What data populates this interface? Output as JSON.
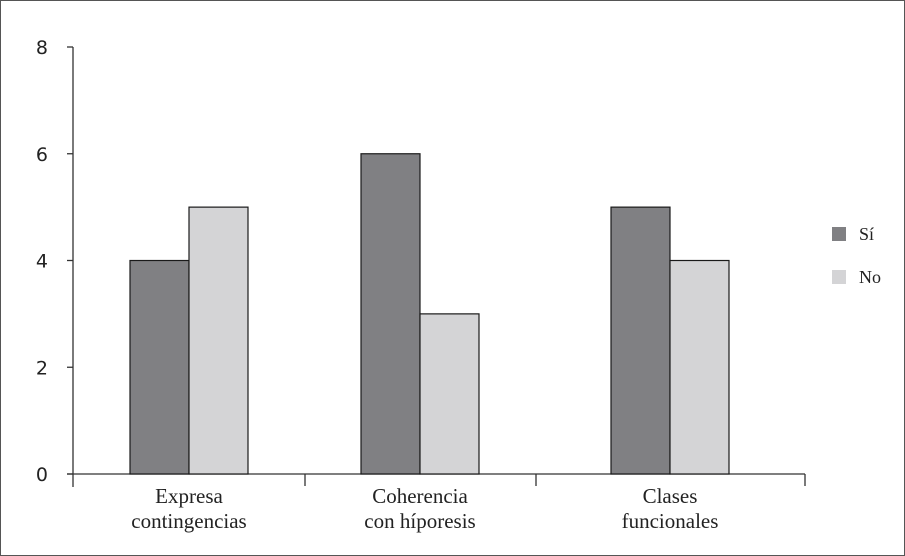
{
  "chart_data": {
    "type": "bar",
    "categories": [
      [
        "Expresa",
        "contingencias"
      ],
      [
        "Coherencia",
        "con híporesis"
      ],
      [
        "Clases",
        "funcionales"
      ]
    ],
    "series": [
      {
        "name": "Sí",
        "color": "#808083",
        "values": [
          4,
          6,
          5
        ]
      },
      {
        "name": "No",
        "color": "#d4d4d6",
        "values": [
          5,
          3,
          4
        ]
      }
    ],
    "ylim": [
      0,
      8
    ],
    "yticks": [
      "0",
      "2",
      "4",
      "6",
      "8"
    ],
    "legend_position": "right",
    "grid": false
  }
}
